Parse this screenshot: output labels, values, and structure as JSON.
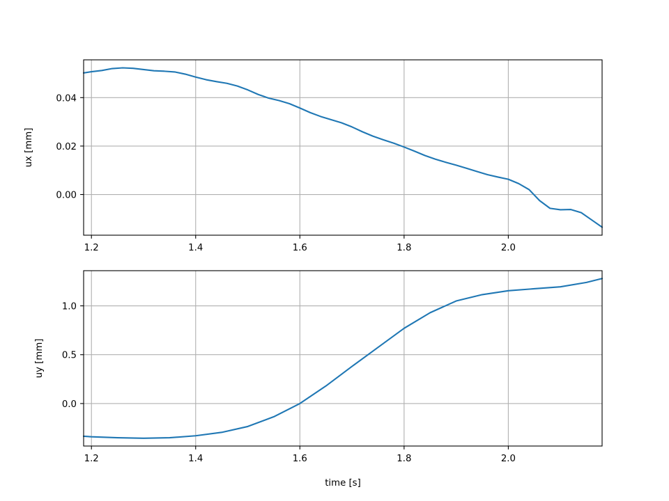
{
  "chart_data": [
    {
      "type": "line",
      "title": "",
      "xlabel": "",
      "ylabel": "ux [mm]",
      "xlim": [
        1.185,
        2.18
      ],
      "ylim": [
        -0.0168,
        0.0556
      ],
      "xticks": [
        1.2,
        1.4,
        1.6,
        1.8,
        2.0
      ],
      "xtick_labels": [
        "1.2",
        "1.4",
        "1.6",
        "1.8",
        "2.0"
      ],
      "yticks": [
        0.0,
        0.02,
        0.04
      ],
      "ytick_labels": [
        "0.00",
        "0.02",
        "0.04"
      ],
      "grid": true,
      "color": "#1f77b4",
      "x": [
        1.185,
        1.2,
        1.22,
        1.24,
        1.26,
        1.28,
        1.3,
        1.32,
        1.34,
        1.36,
        1.38,
        1.4,
        1.42,
        1.44,
        1.46,
        1.48,
        1.5,
        1.52,
        1.54,
        1.56,
        1.58,
        1.6,
        1.62,
        1.64,
        1.66,
        1.68,
        1.7,
        1.72,
        1.74,
        1.76,
        1.78,
        1.8,
        1.82,
        1.84,
        1.86,
        1.88,
        1.9,
        1.92,
        1.94,
        1.96,
        1.98,
        2.0,
        2.02,
        2.04,
        2.06,
        2.08,
        2.1,
        2.12,
        2.14,
        2.16,
        2.18
      ],
      "y": [
        0.0502,
        0.0507,
        0.0512,
        0.052,
        0.0523,
        0.0521,
        0.0516,
        0.0511,
        0.0509,
        0.0506,
        0.0497,
        0.0485,
        0.0474,
        0.0466,
        0.0459,
        0.0448,
        0.0432,
        0.0413,
        0.0398,
        0.0388,
        0.0375,
        0.0357,
        0.0338,
        0.0322,
        0.0309,
        0.0296,
        0.0279,
        0.0259,
        0.0241,
        0.0226,
        0.0212,
        0.0196,
        0.0179,
        0.0161,
        0.0146,
        0.0133,
        0.0121,
        0.0108,
        0.0095,
        0.0082,
        0.0072,
        0.0063,
        0.0045,
        0.002,
        -0.0025,
        -0.0057,
        -0.0063,
        -0.0062,
        -0.0075,
        -0.0105,
        -0.0135
      ]
    },
    {
      "type": "line",
      "title": "",
      "xlabel": "time [s]",
      "ylabel": "uy [mm]",
      "xlim": [
        1.185,
        2.18
      ],
      "ylim": [
        -0.435,
        1.36
      ],
      "xticks": [
        1.2,
        1.4,
        1.6,
        1.8,
        2.0
      ],
      "xtick_labels": [
        "1.2",
        "1.4",
        "1.6",
        "1.8",
        "2.0"
      ],
      "yticks": [
        0.0,
        0.5,
        1.0
      ],
      "ytick_labels": [
        "0.0",
        "0.5",
        "1.0"
      ],
      "grid": true,
      "color": "#1f77b4",
      "x": [
        1.185,
        1.2,
        1.25,
        1.3,
        1.35,
        1.4,
        1.45,
        1.5,
        1.55,
        1.6,
        1.65,
        1.7,
        1.75,
        1.8,
        1.85,
        1.9,
        1.95,
        2.0,
        2.05,
        2.1,
        2.15,
        2.18
      ],
      "y": [
        -0.335,
        -0.34,
        -0.35,
        -0.355,
        -0.35,
        -0.33,
        -0.295,
        -0.235,
        -0.135,
        0.0,
        0.18,
        0.38,
        0.575,
        0.77,
        0.93,
        1.05,
        1.115,
        1.155,
        1.175,
        1.195,
        1.24,
        1.28
      ]
    }
  ]
}
